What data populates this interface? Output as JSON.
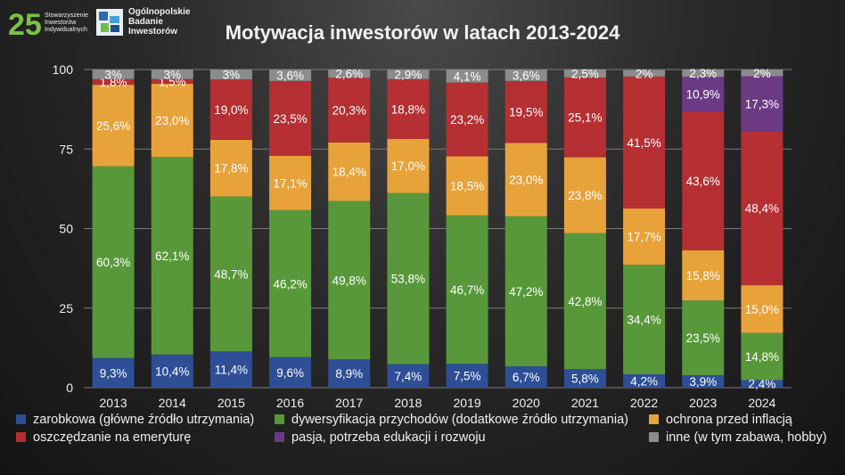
{
  "header": {
    "logo_badge": "25",
    "logo_left_text": "Stowarzyszenie\nInwestorów\nIndywidualnych",
    "logo_right_text": "Ogólnopolskie\nBadanie\nInwestorów",
    "title": "Motywacja inwestorów w latach 2013-2024"
  },
  "chart_data": {
    "type": "bar",
    "stacked": true,
    "title": "Motywacja inwestorów w latach 2013-2024",
    "categories": [
      "2013",
      "2014",
      "2015",
      "2016",
      "2017",
      "2018",
      "2019",
      "2020",
      "2021",
      "2022",
      "2023",
      "2024"
    ],
    "ylim": [
      0,
      100
    ],
    "yticks": [
      0,
      25,
      50,
      75,
      100
    ],
    "grid": true,
    "legend_position": "bottom",
    "series": [
      {
        "name": "zarobkowa (główne źródło utrzymania)",
        "color": "#2e4e96",
        "values": [
          9.3,
          10.4,
          11.4,
          9.6,
          8.9,
          7.4,
          7.5,
          6.7,
          5.8,
          4.2,
          3.9,
          2.4
        ],
        "labels": [
          "9,3%",
          "10,4%",
          "11,4%",
          "9,6%",
          "8,9%",
          "7,4%",
          "7,5%",
          "6,7%",
          "5,8%",
          "4,2%",
          "3,9%",
          "2,4%"
        ]
      },
      {
        "name": "dywersyfikacja przychodów (dodatkowe źródło utrzymania)",
        "color": "#58983a",
        "values": [
          60.3,
          62.1,
          48.7,
          46.2,
          49.8,
          53.8,
          46.7,
          47.2,
          42.8,
          34.4,
          23.5,
          14.8
        ],
        "labels": [
          "60,3%",
          "62,1%",
          "48,7%",
          "46,2%",
          "49,8%",
          "53,8%",
          "46,7%",
          "47,2%",
          "42,8%",
          "34,4%",
          "23,5%",
          "14,8%"
        ]
      },
      {
        "name": "ochrona przed inflacją",
        "color": "#e8a23a",
        "values": [
          25.6,
          23.0,
          17.8,
          17.1,
          18.4,
          17.0,
          18.5,
          23.0,
          23.8,
          17.7,
          15.8,
          15.0
        ],
        "labels": [
          "25,6%",
          "23,0%",
          "17,8%",
          "17,1%",
          "18,4%",
          "17,0%",
          "18,5%",
          "23,0%",
          "23,8%",
          "17,7%",
          "15,8%",
          "15,0%"
        ]
      },
      {
        "name": "oszczędzanie na emeryturę",
        "color": "#b52f33",
        "values": [
          1.8,
          1.5,
          19.0,
          23.5,
          20.3,
          18.8,
          23.2,
          19.5,
          25.1,
          41.5,
          43.6,
          48.4
        ],
        "labels": [
          "1,8%",
          "1,5%",
          "19,0%",
          "23,5%",
          "20,3%",
          "18,8%",
          "23,2%",
          "19,5%",
          "25,1%",
          "41,5%",
          "43,6%",
          "48,4%"
        ]
      },
      {
        "name": "pasja, potrzeba edukacji i rozwoju",
        "color": "#6c3a85",
        "values": [
          0,
          0,
          0,
          0,
          0,
          0,
          0,
          0,
          0,
          0,
          10.9,
          17.3
        ],
        "labels": [
          "",
          "",
          "",
          "",
          "",
          "",
          "",
          "",
          "",
          "",
          "10,9%",
          "17,3%"
        ]
      },
      {
        "name": "inne (w tym zabawa, hobby)",
        "color": "#8c8c8c",
        "values": [
          3,
          3,
          3,
          3.6,
          2.6,
          2.9,
          4.1,
          3.6,
          2.5,
          2,
          2.3,
          2
        ],
        "labels": [
          "3%",
          "3%",
          "3%",
          "3,6%",
          "2,6%",
          "2,9%",
          "4,1%",
          "3,6%",
          "2,5%",
          "2%",
          "2,3%",
          "2%"
        ]
      }
    ]
  },
  "legend": {
    "items": [
      {
        "label": "zarobkowa (główne źródło utrzymania)",
        "color": "#2e4e96"
      },
      {
        "label": "dywersyfikacja przychodów (dodatkowe źródło utrzymania)",
        "color": "#58983a"
      },
      {
        "label": "ochrona przed inflacją",
        "color": "#e8a23a"
      },
      {
        "label": "oszczędzanie na emeryturę",
        "color": "#b52f33"
      },
      {
        "label": "pasja, potrzeba edukacji i rozwoju",
        "color": "#6c3a85"
      },
      {
        "label": "inne (w tym zabawa, hobby)",
        "color": "#8c8c8c"
      }
    ]
  }
}
